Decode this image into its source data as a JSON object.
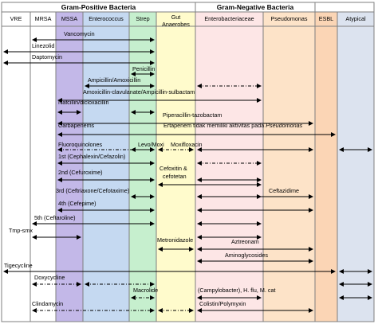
{
  "group_headers": {
    "gram_positive": "Gram-Positive Bacteria",
    "gram_negative": "Gram-Negative Bacteria"
  },
  "columns": [
    {
      "key": "vre",
      "label": "VRE",
      "color": "#ffffff"
    },
    {
      "key": "mrsa",
      "label": "MRSA",
      "color": "#ffffff"
    },
    {
      "key": "mssa",
      "label": "MSSA",
      "color": "#c3b8e8"
    },
    {
      "key": "enterococcus",
      "label": "Enterococcus",
      "color": "#c5d9f1"
    },
    {
      "key": "strep",
      "label": "Strep",
      "color": "#c6efce"
    },
    {
      "key": "gut_anaerobes",
      "label": "Gut Anaerobes",
      "color": "#fffbcc"
    },
    {
      "key": "enterobacteriaceae",
      "label": "Enterobacteriaceae",
      "color": "#fde6e6"
    },
    {
      "key": "pseudomonas",
      "label": "Pseudomonas",
      "color": "#fde3c8"
    },
    {
      "key": "esbl",
      "label": "ESBL",
      "color": "#fbd5b5"
    },
    {
      "key": "atypical",
      "label": "Atypical",
      "color": "#dce3ef"
    }
  ],
  "drugs": [
    {
      "label": "Vancomycin",
      "segments": [
        {
          "from": "mrsa",
          "to": "strep",
          "style": "solid"
        }
      ]
    },
    {
      "label": "Linezolid",
      "segments": [
        {
          "from": "vre",
          "to": "strep",
          "style": "solid"
        }
      ]
    },
    {
      "label": "Daptomycin",
      "segments": [
        {
          "from": "vre",
          "to": "strep",
          "style": "solid"
        }
      ]
    },
    {
      "label": "Penicillin",
      "segments": [
        {
          "from": "strep",
          "to": "strep",
          "style": "solid"
        }
      ]
    },
    {
      "label": "Ampicillin/Amoxicillin",
      "segments": [
        {
          "from": "enterococcus",
          "to": "strep",
          "style": "solid"
        },
        {
          "from": "enterobacteriaceae",
          "to": "enterobacteriaceae",
          "style": "dashdot"
        }
      ]
    },
    {
      "label": "Amoxicillin-clavulanate/Ampicillin-sulbactam",
      "segments": [
        {
          "from": "mssa",
          "to": "enterobacteriaceae",
          "style": "solid"
        }
      ]
    },
    {
      "label": "Nafcillin/dicloxacillin",
      "segments": [
        {
          "from": "mssa",
          "to": "mssa",
          "style": "solid"
        },
        {
          "from": "strep",
          "to": "strep",
          "style": "solid"
        }
      ]
    },
    {
      "label": "Piperacillin-tazobactam",
      "segments": [
        {
          "from": "mssa",
          "to": "pseudomonas",
          "style": "solid"
        }
      ]
    },
    {
      "label": "Carbapenems",
      "segments": [
        {
          "from": "mssa",
          "to": "esbl",
          "style": "solid"
        }
      ]
    },
    {
      "label": "Ertapenem tidak memiliki aktivitas pada Pseudomonas",
      "segments": []
    },
    {
      "label": "Fluoroquinolones",
      "segments": [
        {
          "from": "mssa",
          "to": "strep",
          "style": "dashdot"
        },
        {
          "from": "enterobacteriaceae",
          "to": "pseudomonas",
          "style": "solid"
        },
        {
          "from": "atypical",
          "to": "atypical",
          "style": "solid"
        }
      ]
    },
    {
      "label": "Levo/Moxi",
      "segments": [
        {
          "from": "strep",
          "to": "strep",
          "style": "solid"
        }
      ]
    },
    {
      "label": "Moxifloxacin",
      "segments": [
        {
          "from": "gut_anaerobes",
          "to": "gut_anaerobes",
          "style": "dashdot"
        }
      ]
    },
    {
      "label": "1st (Cephalexin/Cefazolin)",
      "segments": [
        {
          "from": "mssa",
          "to": "strep",
          "style": "solid"
        },
        {
          "from": "enterobacteriaceae",
          "to": "enterobacteriaceae",
          "style": "dashdot"
        }
      ]
    },
    {
      "label": "Cefoxitin & cefotetan",
      "segments": [
        {
          "from": "gut_anaerobes",
          "to": "enterobacteriaceae",
          "style": "solid"
        }
      ]
    },
    {
      "label": "2nd (Cefuroxime)",
      "segments": [
        {
          "from": "mssa",
          "to": "strep",
          "style": "solid"
        },
        {
          "from": "enterobacteriaceae",
          "to": "enterobacteriaceae",
          "style": "solid"
        }
      ]
    },
    {
      "label": "3rd (Ceftriaxone/Cefotaxime)",
      "segments": [
        {
          "from": "strep",
          "to": "strep",
          "style": "solid"
        },
        {
          "from": "enterobacteriaceae",
          "to": "enterobacteriaceae",
          "style": "solid"
        }
      ]
    },
    {
      "label": "Ceftazidime",
      "segments": [
        {
          "from": "enterobacteriaceae",
          "to": "pseudomonas",
          "style": "solid"
        }
      ]
    },
    {
      "label": "4th (Cefepime)",
      "segments": [
        {
          "from": "mssa",
          "to": "strep",
          "style": "solid"
        },
        {
          "from": "enterobacteriaceae",
          "to": "pseudomonas",
          "style": "solid"
        }
      ]
    },
    {
      "label": "5th (Ceftaroline)",
      "segments": [
        {
          "from": "mrsa",
          "to": "strep",
          "style": "solid"
        },
        {
          "from": "enterobacteriaceae",
          "to": "enterobacteriaceae",
          "style": "solid"
        }
      ]
    },
    {
      "label": "Tmp-smx",
      "segments": [
        {
          "from": "mrsa",
          "to": "mssa",
          "style": "solid"
        },
        {
          "from": "enterobacteriaceae",
          "to": "enterobacteriaceae",
          "style": "solid"
        }
      ]
    },
    {
      "label": "Metronidazole",
      "segments": [
        {
          "from": "gut_anaerobes",
          "to": "gut_anaerobes",
          "style": "solid"
        }
      ]
    },
    {
      "label": "Aztreonam",
      "segments": [
        {
          "from": "enterobacteriaceae",
          "to": "pseudomonas",
          "style": "solid"
        }
      ]
    },
    {
      "label": "Aminoglycosides",
      "segments": [
        {
          "from": "enterobacteriaceae",
          "to": "pseudomonas",
          "style": "solid"
        }
      ]
    },
    {
      "label": "Tigecycline",
      "segments": [
        {
          "from": "vre",
          "to": "esbl",
          "style": "solid"
        },
        {
          "from": "atypical",
          "to": "atypical",
          "style": "solid"
        }
      ]
    },
    {
      "label": "Doxycycline",
      "segments": [
        {
          "from": "mrsa",
          "to": "mssa",
          "style": "dashdot"
        },
        {
          "from": "enterococcus",
          "to": "strep",
          "style": "dashdot"
        },
        {
          "from": "atypical",
          "to": "atypical",
          "style": "solid"
        }
      ]
    },
    {
      "label": "Macrolide",
      "segments": [
        {
          "from": "strep",
          "to": "strep",
          "style": "dashdot"
        },
        {
          "from": "enterobacteriaceae",
          "to": "enterobacteriaceae",
          "style": "solid"
        },
        {
          "from": "atypical",
          "to": "atypical",
          "style": "solid"
        }
      ]
    },
    {
      "label": "(Campylobacter), H. flu, M. cat",
      "segments": []
    },
    {
      "label": "Clindamycin",
      "segments": [
        {
          "from": "mrsa",
          "to": "strep",
          "style": "dashdot"
        },
        {
          "from": "gut_anaerobes",
          "to": "gut_anaerobes",
          "style": "dashdot"
        }
      ]
    },
    {
      "label": "Colistin/Polymyxin",
      "segments": [
        {
          "from": "enterobacteriaceae",
          "to": "pseudomonas",
          "style": "solid"
        }
      ]
    }
  ],
  "colors": {
    "grid": "#7f7f7f",
    "arrow": "#000000"
  }
}
